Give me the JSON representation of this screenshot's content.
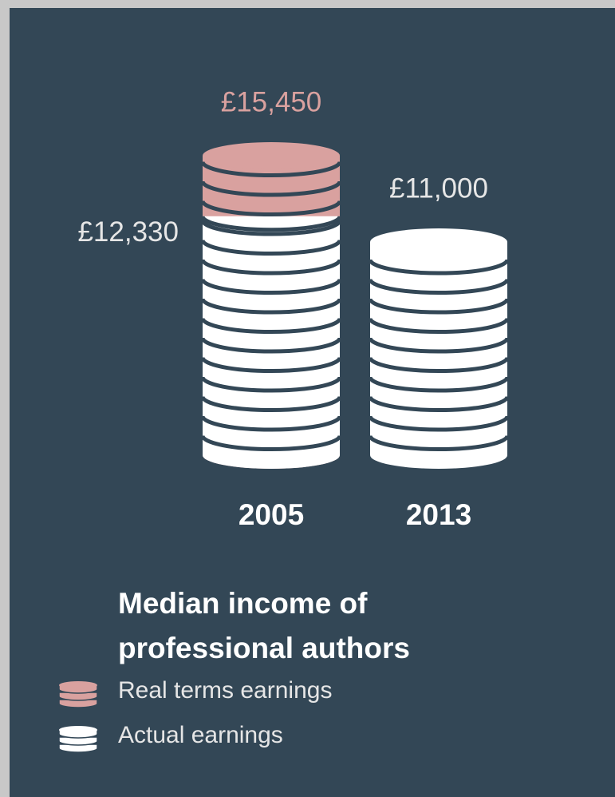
{
  "chart_data": {
    "type": "bar",
    "title": "Median income of professional authors",
    "categories": [
      "2005",
      "2013"
    ],
    "series": [
      {
        "name": "Real terms earnings",
        "color": "#d9a19f",
        "values": [
          15450,
          null
        ],
        "value_labels": [
          "£15,450",
          null
        ]
      },
      {
        "name": "Actual earnings",
        "color": "#ffffff",
        "values": [
          12330,
          11000
        ],
        "value_labels": [
          "£12,330",
          "£11,000"
        ]
      }
    ],
    "background": "#334756"
  }
}
